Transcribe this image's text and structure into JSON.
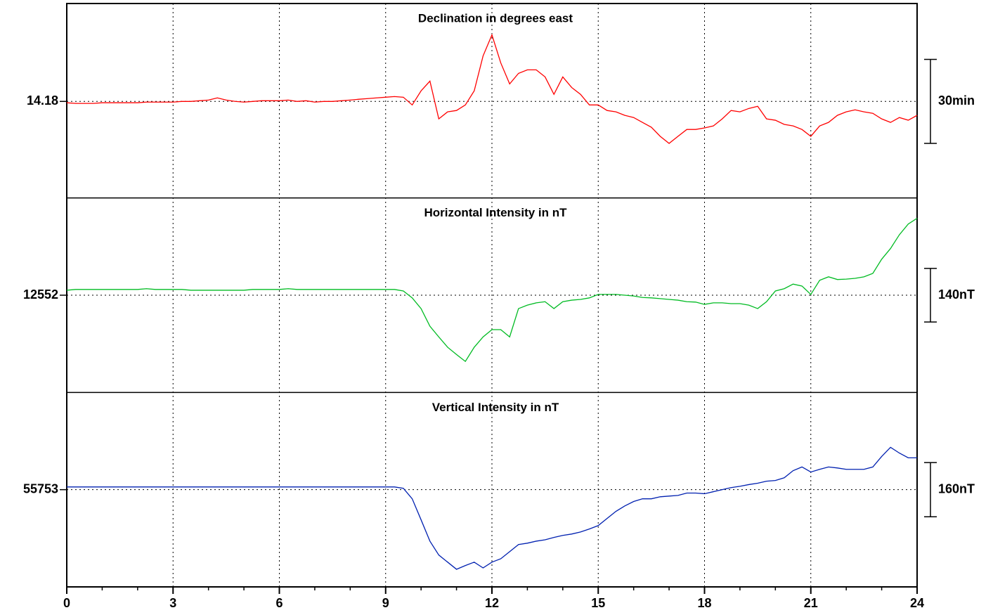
{
  "chart_data": {
    "type": "line",
    "x": [
      0,
      0.25,
      0.5,
      0.75,
      1,
      1.25,
      1.5,
      1.75,
      2,
      2.25,
      2.5,
      2.75,
      3,
      3.25,
      3.5,
      3.75,
      4,
      4.25,
      4.5,
      4.75,
      5,
      5.25,
      5.5,
      5.75,
      6,
      6.25,
      6.5,
      6.75,
      7,
      7.25,
      7.5,
      7.75,
      8,
      8.25,
      8.5,
      8.75,
      9,
      9.25,
      9.5,
      9.75,
      10,
      10.25,
      10.5,
      10.75,
      11,
      11.25,
      11.5,
      11.75,
      12,
      12.25,
      12.5,
      12.75,
      13,
      13.25,
      13.5,
      13.75,
      14,
      14.25,
      14.5,
      14.75,
      15,
      15.25,
      15.5,
      15.75,
      16,
      16.25,
      16.5,
      16.75,
      17,
      17.25,
      17.5,
      17.75,
      18,
      18.25,
      18.5,
      18.75,
      19,
      19.25,
      19.5,
      19.75,
      20,
      20.25,
      20.5,
      20.75,
      21,
      21.25,
      21.5,
      21.75,
      22,
      22.25,
      22.5,
      22.75,
      23,
      23.25,
      23.5,
      23.75,
      24
    ],
    "xlim": [
      0,
      24
    ],
    "xticks": [
      0,
      3,
      6,
      9,
      12,
      15,
      18,
      21,
      24
    ],
    "xminorticks": [
      1,
      2,
      4,
      5,
      7,
      8,
      10,
      11,
      13,
      14,
      16,
      17,
      19,
      20,
      22,
      23
    ],
    "grid": true,
    "panels": [
      {
        "title": "Declination in degrees east",
        "color": "#ff0000",
        "ylim": [
          13.605,
          14.763
        ],
        "yticks": [
          14.18
        ],
        "scale_bar": {
          "value": 0.5,
          "label": "30min"
        },
        "values": [
          14.172,
          14.168,
          14.168,
          14.168,
          14.172,
          14.172,
          14.172,
          14.172,
          14.172,
          14.176,
          14.176,
          14.176,
          14.176,
          14.18,
          14.18,
          14.184,
          14.188,
          14.201,
          14.188,
          14.18,
          14.176,
          14.18,
          14.184,
          14.184,
          14.184,
          14.188,
          14.18,
          14.184,
          14.176,
          14.18,
          14.18,
          14.184,
          14.188,
          14.193,
          14.197,
          14.201,
          14.205,
          14.209,
          14.205,
          14.159,
          14.243,
          14.301,
          14.076,
          14.118,
          14.126,
          14.159,
          14.243,
          14.451,
          14.576,
          14.409,
          14.284,
          14.347,
          14.368,
          14.368,
          14.326,
          14.222,
          14.326,
          14.263,
          14.222,
          14.159,
          14.159,
          14.126,
          14.118,
          14.097,
          14.084,
          14.055,
          14.026,
          13.972,
          13.93,
          13.972,
          14.013,
          14.013,
          14.022,
          14.034,
          14.076,
          14.126,
          14.118,
          14.138,
          14.151,
          14.076,
          14.068,
          14.043,
          14.034,
          14.013,
          13.972,
          14.034,
          14.055,
          14.097,
          14.118,
          14.13,
          14.118,
          14.109,
          14.076,
          14.055,
          14.084,
          14.068,
          14.097
        ]
      },
      {
        "title": "Horizontal Intensity in nT",
        "color": "#00bb22",
        "ylim": [
          12298,
          12806
        ],
        "yticks": [
          12552
        ],
        "scale_bar": {
          "value": 140,
          "label": "140nT"
        },
        "values": [
          12565,
          12567,
          12567,
          12567,
          12567,
          12567,
          12567,
          12567,
          12567,
          12569,
          12567,
          12567,
          12567,
          12567,
          12565,
          12565,
          12565,
          12565,
          12565,
          12565,
          12565,
          12567,
          12567,
          12567,
          12567,
          12569,
          12567,
          12567,
          12567,
          12567,
          12567,
          12567,
          12567,
          12567,
          12567,
          12567,
          12567,
          12567,
          12563,
          12545,
          12517,
          12471,
          12443,
          12416,
          12397,
          12379,
          12416,
          12443,
          12462,
          12462,
          12443,
          12517,
          12526,
          12532,
          12535,
          12517,
          12535,
          12539,
          12541,
          12545,
          12554,
          12554,
          12554,
          12552,
          12550,
          12546,
          12545,
          12543,
          12541,
          12539,
          12535,
          12534,
          12528,
          12532,
          12532,
          12530,
          12530,
          12526,
          12517,
          12535,
          12563,
          12569,
          12581,
          12576,
          12554,
          12591,
          12600,
          12593,
          12594,
          12596,
          12600,
          12609,
          12646,
          12674,
          12710,
          12738,
          12753
        ]
      },
      {
        "title": "Vertical Intensity in nT",
        "color": "#0020b0",
        "ylim": [
          55466,
          56040
        ],
        "yticks": [
          55753
        ],
        "scale_bar": {
          "value": 160,
          "label": "160nT"
        },
        "values": [
          55761,
          55761,
          55761,
          55761,
          55761,
          55761,
          55761,
          55761,
          55761,
          55761,
          55761,
          55761,
          55761,
          55761,
          55761,
          55761,
          55761,
          55761,
          55761,
          55761,
          55761,
          55761,
          55761,
          55761,
          55761,
          55761,
          55761,
          55761,
          55761,
          55761,
          55761,
          55761,
          55761,
          55761,
          55761,
          55761,
          55761,
          55761,
          55757,
          55726,
          55664,
          55601,
          55560,
          55539,
          55518,
          55529,
          55539,
          55522,
          55539,
          55549,
          55570,
          55591,
          55595,
          55601,
          55605,
          55612,
          55618,
          55622,
          55628,
          55637,
          55647,
          55668,
          55689,
          55705,
          55718,
          55726,
          55726,
          55732,
          55734,
          55736,
          55743,
          55743,
          55741,
          55747,
          55753,
          55759,
          55763,
          55768,
          55772,
          55778,
          55780,
          55788,
          55809,
          55820,
          55805,
          55813,
          55820,
          55817,
          55813,
          55813,
          55813,
          55820,
          55851,
          55878,
          55861,
          55847,
          55847
        ]
      }
    ]
  }
}
